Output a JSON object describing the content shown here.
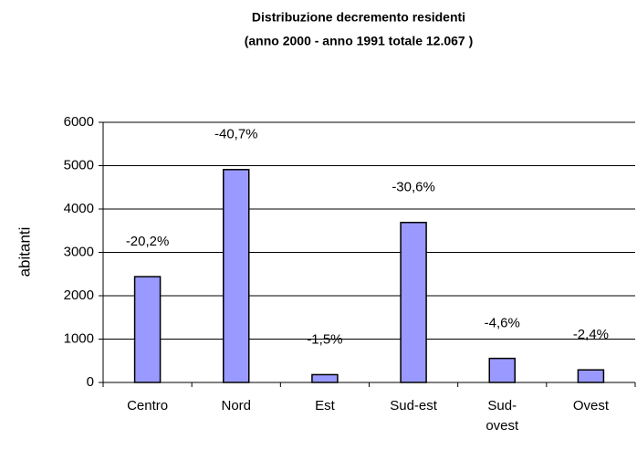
{
  "chart_data": {
    "type": "bar",
    "title": "Distribuzione decremento residenti",
    "subtitle": "(anno 2000 - anno 1991 totale 12.067 )",
    "y_label": "abitanti",
    "categories": [
      "Centro",
      "Nord",
      "Est",
      "Sud-est",
      "Sud-ovest",
      "Ovest"
    ],
    "values": [
      2440,
      4910,
      180,
      3690,
      555,
      290
    ],
    "annotations": [
      "-20,2%",
      "-40,7%",
      "-1,5%",
      "-30,6%",
      "-4,6%",
      "-2,4%"
    ],
    "color": "#9999ff",
    "ylim": [
      0,
      6000
    ],
    "yticks": [
      0,
      1000,
      2000,
      3000,
      4000,
      5000,
      6000
    ],
    "grid": true
  }
}
